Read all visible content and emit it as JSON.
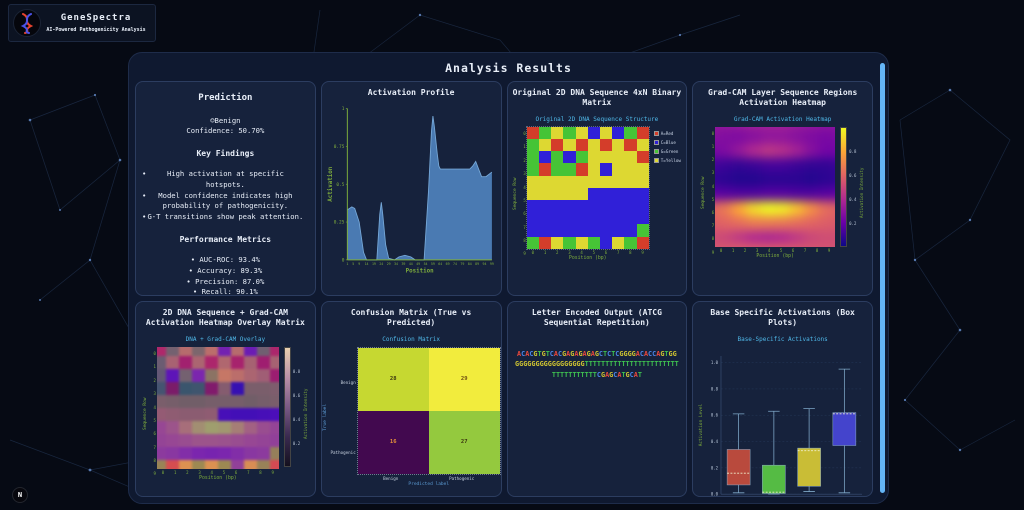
{
  "app": {
    "name": "GeneSpectra",
    "tagline": "AI-Powered Pathogenicity Analysis"
  },
  "header": {
    "title": "Analysis Results"
  },
  "badge": {
    "label": "N"
  },
  "theme": {
    "background": "#060a14",
    "panel_bg": "#0f1930",
    "card_bg": "#16223c",
    "card_border": "#2c3d60",
    "accent_cyan": "#4fb8e8",
    "axis_green": "#7fae3c",
    "scrollbar_blue": "#64b5f6",
    "text": "#e8eef8"
  },
  "prediction": {
    "title": "Prediction",
    "result": "☺Benign",
    "confidence": "Confidence: 50.70%",
    "findings_title": "Key Findings",
    "findings": [
      "High activation at specific hotspots.",
      "Model confidence indicates high probability of pathogenicity.",
      "G-T transitions show peak attention."
    ],
    "metrics_title": "Performance Metrics",
    "metrics": [
      "AUC-ROC: 93.4%",
      "Accuracy: 89.3%",
      "Precision: 87.0%",
      "Recall: 90.1%"
    ]
  },
  "panels": {
    "activation": {
      "title": "Activation Profile"
    },
    "dna": {
      "title": "Original 2D DNA Sequence 4xN Binary Matrix"
    },
    "gradcam": {
      "title": "Grad-CAM Layer Sequence Regions Activation Heatmap"
    },
    "overlay": {
      "title": "2D DNA Sequence + Grad-CAM Activation Heatmap Overlay Matrix"
    },
    "confusion": {
      "title": "Confusion Matrix (True vs Predicted)"
    },
    "letters": {
      "title": "Letter Encoded Output (ATCG Sequential Repetition)",
      "lines": [
        "ACACGTGTCACGAGAGAGAGCTCTCGGGGACACCAGTGG",
        "GGGGGGGGGGGGGGGGGTTTTTTTTTTTTTTTTTTTTTTT",
        "TTTTTTTTTTTCGAGCATGCAT"
      ],
      "letter_colors": {
        "A": "#e8483c",
        "C": "#4a86e8",
        "G": "#cfc431",
        "T": "#3ec050"
      }
    },
    "box": {
      "title": "Base Specific Activations (Box Plots)"
    }
  },
  "chart_data": [
    {
      "id": "activation",
      "type": "area",
      "title": "Activation Profile",
      "xlabel": "Position",
      "ylabel": "Activation",
      "xlim": [
        1,
        99
      ],
      "ylim": [
        0,
        1
      ],
      "x_ticks": [
        1,
        5,
        9,
        14,
        19,
        24,
        29,
        34,
        39,
        44,
        49,
        54,
        59,
        64,
        69,
        74,
        79,
        84,
        89,
        94,
        99
      ],
      "y_ticks": [
        0,
        0.25,
        0.5,
        0.75,
        1
      ],
      "fill_color": "#4d80b8",
      "axis_color": "#7fae3c",
      "points": [
        [
          1,
          0.33
        ],
        [
          4,
          0.35
        ],
        [
          6,
          0.34
        ],
        [
          9,
          0.25
        ],
        [
          12,
          0.05
        ],
        [
          14,
          0
        ],
        [
          21,
          0
        ],
        [
          23,
          0.3
        ],
        [
          24,
          0.38
        ],
        [
          25,
          0.3
        ],
        [
          27,
          0.1
        ],
        [
          29,
          0.01
        ],
        [
          33,
          0
        ],
        [
          36,
          0.02
        ],
        [
          40,
          0.03
        ],
        [
          44,
          0.02
        ],
        [
          47,
          0
        ],
        [
          53,
          0
        ],
        [
          56,
          0.45
        ],
        [
          58,
          0.85
        ],
        [
          59,
          0.95
        ],
        [
          60,
          0.88
        ],
        [
          62,
          0.7
        ],
        [
          63,
          0.62
        ],
        [
          64,
          0.6
        ],
        [
          74,
          0.6
        ],
        [
          84,
          0.6
        ],
        [
          86,
          0.62
        ],
        [
          88,
          0.65
        ],
        [
          90,
          0.6
        ],
        [
          92,
          0.55
        ],
        [
          95,
          0.55
        ],
        [
          99,
          0.58
        ]
      ]
    },
    {
      "id": "dna_matrix",
      "type": "heatmap",
      "title": "Original 2D DNA Sequence Structure",
      "xlabel": "Position (bp)",
      "ylabel": "Sequence Row",
      "x_ticks": [
        0,
        1,
        2,
        3,
        4,
        5,
        6,
        7,
        8,
        9
      ],
      "y_ticks": [
        0,
        1,
        2,
        3,
        4,
        5,
        6,
        7,
        8,
        9
      ],
      "base_colors": {
        "A": "#d43d2a",
        "C": "#3020d8",
        "G": "#46c436",
        "T": "#ddd832"
      },
      "legend": [
        {
          "label": "A=Red",
          "base": "A"
        },
        {
          "label": "C=Blue",
          "base": "C"
        },
        {
          "label": "G=Green",
          "base": "G"
        },
        {
          "label": "T=Yellow",
          "base": "T"
        }
      ],
      "grid": [
        [
          "A",
          "G",
          "T",
          "G",
          "T",
          "C",
          "T",
          "C",
          "G",
          "A"
        ],
        [
          "G",
          "T",
          "A",
          "T",
          "A",
          "T",
          "A",
          "T",
          "A",
          "T"
        ],
        [
          "G",
          "C",
          "G",
          "C",
          "G",
          "T",
          "T",
          "T",
          "T",
          "A"
        ],
        [
          "G",
          "A",
          "G",
          "G",
          "A",
          "T",
          "C",
          "T",
          "T",
          "T"
        ],
        [
          "T",
          "T",
          "T",
          "T",
          "T",
          "T",
          "T",
          "T",
          "T",
          "T"
        ],
        [
          "T",
          "T",
          "T",
          "T",
          "T",
          "C",
          "C",
          "C",
          "C",
          "C"
        ],
        [
          "C",
          "C",
          "C",
          "C",
          "C",
          "C",
          "C",
          "C",
          "C",
          "C"
        ],
        [
          "C",
          "C",
          "C",
          "C",
          "C",
          "C",
          "C",
          "C",
          "C",
          "C"
        ],
        [
          "C",
          "C",
          "C",
          "C",
          "C",
          "C",
          "C",
          "C",
          "C",
          "G"
        ],
        [
          "G",
          "A",
          "T",
          "G",
          "T",
          "G",
          "C",
          "T",
          "G",
          "A"
        ]
      ]
    },
    {
      "id": "gradcam",
      "type": "heatmap",
      "title": "Grad-CAM Activation Heatmap",
      "xlabel": "Position (bp)",
      "ylabel": "Sequence Row",
      "x_ticks": [
        0,
        1,
        2,
        3,
        4,
        5,
        6,
        7,
        8,
        9
      ],
      "y_ticks": [
        0,
        1,
        2,
        3,
        4,
        5,
        6,
        7,
        8,
        9
      ],
      "colorbar_label": "Activation Intensity",
      "colorbar_ticks": [
        0.8,
        0.6,
        0.4,
        0.2
      ],
      "colorbar_colors": [
        "#0d0887",
        "#6a00a8",
        "#b12a90",
        "#e16462",
        "#fca636",
        "#f0f921"
      ],
      "values": [
        [
          0.4,
          0.4,
          0.42,
          0.45,
          0.45,
          0.45,
          0.42,
          0.4,
          0.38,
          0.38
        ],
        [
          0.35,
          0.33,
          0.32,
          0.35,
          0.38,
          0.38,
          0.35,
          0.32,
          0.3,
          0.32
        ],
        [
          0.3,
          0.32,
          0.4,
          0.5,
          0.55,
          0.52,
          0.45,
          0.35,
          0.28,
          0.28
        ],
        [
          0.15,
          0.12,
          0.1,
          0.12,
          0.15,
          0.15,
          0.12,
          0.1,
          0.1,
          0.12
        ],
        [
          0.1,
          0.08,
          0.06,
          0.06,
          0.08,
          0.08,
          0.08,
          0.06,
          0.08,
          0.1
        ],
        [
          0.22,
          0.2,
          0.18,
          0.18,
          0.2,
          0.2,
          0.18,
          0.18,
          0.2,
          0.22
        ],
        [
          0.7,
          0.75,
          0.85,
          0.95,
          1.0,
          0.98,
          0.9,
          0.8,
          0.72,
          0.68
        ],
        [
          0.68,
          0.7,
          0.72,
          0.75,
          0.75,
          0.74,
          0.72,
          0.7,
          0.68,
          0.66
        ],
        [
          0.62,
          0.6,
          0.55,
          0.5,
          0.48,
          0.5,
          0.55,
          0.6,
          0.62,
          0.62
        ],
        [
          0.65,
          0.66,
          0.68,
          0.68,
          0.68,
          0.68,
          0.66,
          0.65,
          0.64,
          0.64
        ]
      ]
    },
    {
      "id": "overlay",
      "type": "heatmap",
      "title": "DNA + Grad-CAM Overlay",
      "xlabel": "Position (bp)",
      "ylabel": "Sequence Row",
      "x_ticks": [
        0,
        1,
        2,
        3,
        4,
        5,
        6,
        7,
        8,
        9
      ],
      "y_ticks": [
        0,
        1,
        2,
        3,
        4,
        5,
        6,
        7,
        8,
        9
      ],
      "colorbar_label": "Activation Intensity",
      "colorbar_ticks": [
        0.8,
        0.6,
        0.4,
        0.2
      ],
      "colorbar_colors": [
        "#14101e",
        "#3a2a50",
        "#7a5a86",
        "#b890a8",
        "#e8d0b0"
      ]
    },
    {
      "id": "confusion",
      "type": "heatmap",
      "title": "Confusion Matrix",
      "xlabel": "Predicted label",
      "ylabel": "True label",
      "categories": [
        "Benign",
        "Pathogenic"
      ],
      "matrix": [
        [
          28,
          29
        ],
        [
          16,
          27
        ]
      ],
      "cell_colors": [
        [
          "#c6d831",
          "#f2ec3d"
        ],
        [
          "#42094f",
          "#94c93e"
        ]
      ],
      "text_colors": [
        [
          "#3a3410",
          "#6b4a12"
        ],
        [
          "#e8953a",
          "#3a3410"
        ]
      ]
    },
    {
      "id": "boxplot",
      "type": "box",
      "title": "Base-Specific Activations",
      "xlabel": "",
      "ylabel": "Activation Level",
      "y_ticks": [
        0.0,
        0.2,
        0.4,
        0.6,
        0.8,
        1.0
      ],
      "ylim": [
        0,
        1.05
      ],
      "categories": [
        "A",
        "T",
        "G",
        "C"
      ],
      "series": [
        {
          "name": "A",
          "color": "#b94a3d",
          "low": 0.01,
          "q1": 0.07,
          "median": 0.16,
          "q3": 0.34,
          "high": 0.61
        },
        {
          "name": "T",
          "color": "#55bb44",
          "low": 0.0,
          "q1": 0.005,
          "median": 0.015,
          "q3": 0.22,
          "high": 0.63
        },
        {
          "name": "G",
          "color": "#c9bd36",
          "low": 0.02,
          "q1": 0.06,
          "median": 0.33,
          "q3": 0.35,
          "high": 0.65
        },
        {
          "name": "C",
          "color": "#4444cc",
          "low": 0.01,
          "q1": 0.37,
          "median": 0.61,
          "q3": 0.62,
          "high": 0.95
        }
      ]
    }
  ]
}
